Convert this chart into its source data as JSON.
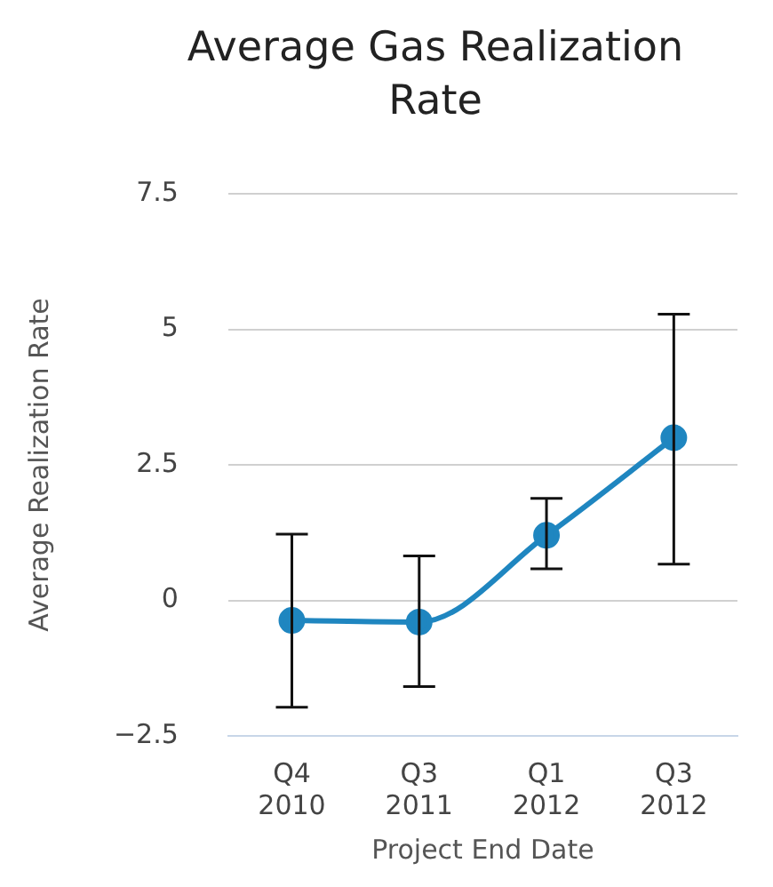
{
  "chart_data": {
    "type": "line",
    "title": "Average Gas Realization Rate",
    "xlabel": "Project End Date",
    "ylabel": "Average Realization Rate",
    "categories": [
      "Q4 2010",
      "Q3 2011",
      "Q1 2012",
      "Q3 2012"
    ],
    "series": [
      {
        "color": "#1f86c0",
        "values": [
          -0.37,
          -0.4,
          1.2,
          3.0
        ],
        "errors": [
          [
            -1.97,
            1.22
          ],
          [
            -1.59,
            0.82
          ],
          [
            0.58,
            1.88
          ],
          [
            0.67,
            5.28
          ]
        ]
      }
    ],
    "ylim": [
      -2.5,
      7.5
    ],
    "yticks": [
      {
        "value": -2.5,
        "label": "−2.5"
      },
      0,
      2.5,
      5,
      7.5
    ],
    "grid": "y",
    "legend": false,
    "marker": "circle",
    "line_style": "solid"
  }
}
